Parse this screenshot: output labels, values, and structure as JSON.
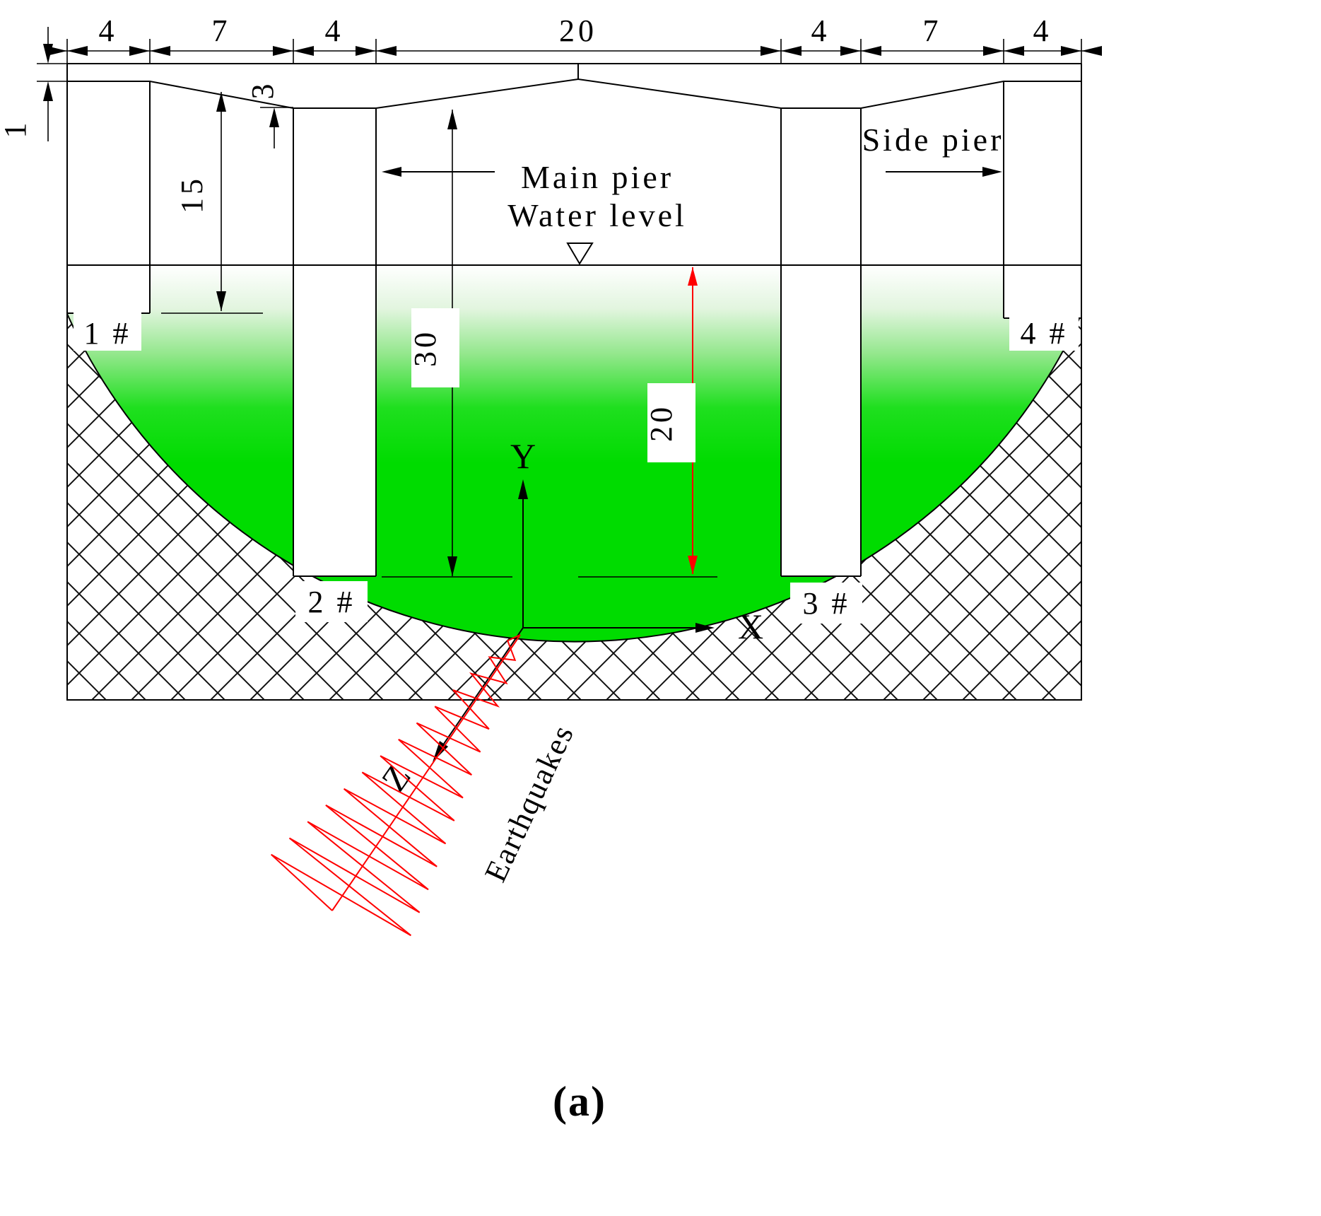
{
  "diagram": {
    "caption": "(a)",
    "top_dims": [
      "4",
      "7",
      "4",
      "20",
      "4",
      "7",
      "4"
    ],
    "dims": {
      "one": "1",
      "three": "3",
      "fifteen": "15",
      "thirty": "30",
      "twenty": "20"
    },
    "labels": {
      "main_pier": "Main pier",
      "water_level": "Water level",
      "side_pier": "Side pier",
      "earthquakes": "Earthquakes",
      "pier1": "1 #",
      "pier2": "2 #",
      "pier3": "3 #",
      "pier4": "4 #",
      "axis_x": "X",
      "axis_y": "Y",
      "axis_z": "Z"
    },
    "colors": {
      "water_green": "#00dc00",
      "dimension_red": "#ff0000",
      "ink": "#000000"
    }
  }
}
